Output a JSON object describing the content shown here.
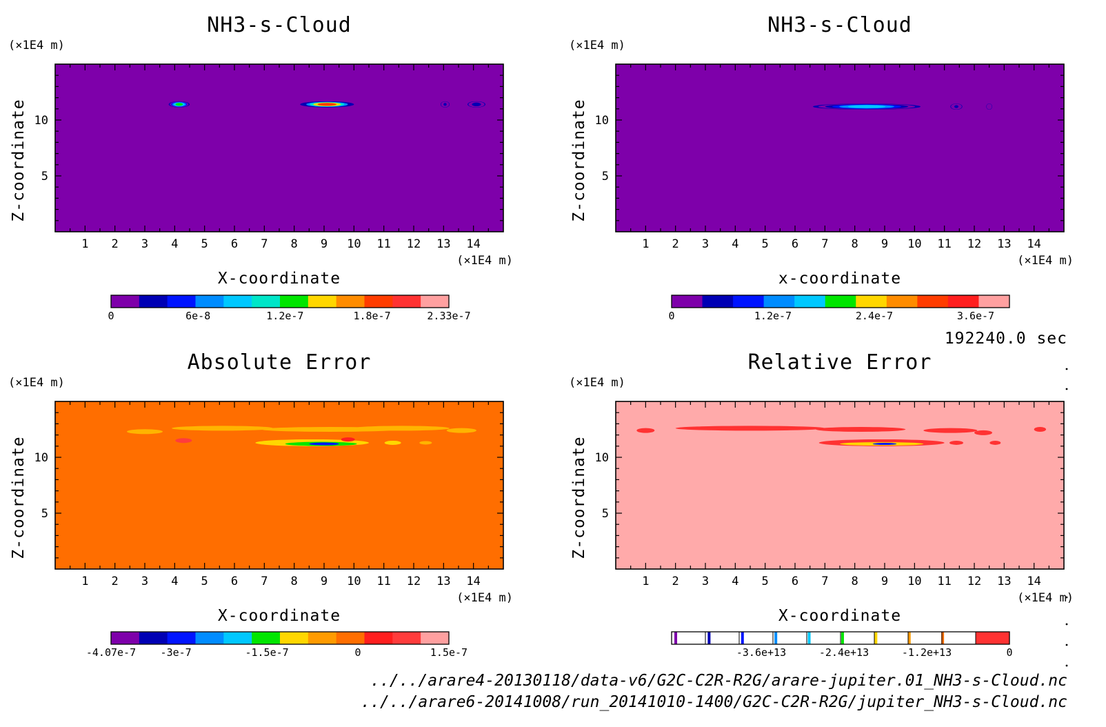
{
  "chart_data": [
    {
      "type": "heatmap",
      "title": "NH3-s-Cloud",
      "xlabel": "X-coordinate",
      "ylabel": "Z-coordinate",
      "x_unit": "(×1E4 m)",
      "y_unit": "(×1E4 m)",
      "xlim": [
        0,
        15
      ],
      "ylim": [
        0,
        15
      ],
      "x_ticks": [
        "1",
        "2",
        "3",
        "4",
        "5",
        "6",
        "7",
        "8",
        "9",
        "10",
        "11",
        "12",
        "13",
        "14"
      ],
      "y_ticks": [
        "5",
        "10"
      ],
      "background": "#7e00aa",
      "colorbar": {
        "range": [
          0,
          2.33e-07
        ],
        "colors": [
          "#7e00aa",
          "#0000b4",
          "#0014ff",
          "#008cff",
          "#00c8ff",
          "#00e6c8",
          "#00e600",
          "#ffd700",
          "#ff8c00",
          "#ff3c00",
          "#ff3232",
          "#ffa0a0"
        ],
        "tick_values": [
          0,
          6e-08,
          1.2e-07,
          1.8e-07,
          2.33e-07
        ],
        "tick_labels": [
          "0",
          "6e-8",
          "1.2e-7",
          "1.8e-7",
          "2.33e-7"
        ]
      },
      "features": [
        {
          "x": [
            3.8,
            4.5
          ],
          "z": 11.4,
          "peak": 1.2e-07
        },
        {
          "x": [
            8.2,
            10.0
          ],
          "z": 11.4,
          "peak": 1.9e-07
        },
        {
          "x": [
            12.9,
            13.2
          ],
          "z": 11.4,
          "peak": 2e-08
        },
        {
          "x": [
            13.8,
            14.4
          ],
          "z": 11.4,
          "peak": 3e-08
        }
      ]
    },
    {
      "type": "heatmap",
      "title": "NH3-s-Cloud",
      "xlabel": "x-coordinate",
      "ylabel": "Z-coordinate",
      "x_unit": "(×1E4 m)",
      "y_unit": "(×1E4 m)",
      "xlim": [
        0,
        15
      ],
      "ylim": [
        0,
        15
      ],
      "x_ticks": [
        "1",
        "2",
        "3",
        "4",
        "5",
        "6",
        "7",
        "8",
        "9",
        "10",
        "11",
        "12",
        "13",
        "14"
      ],
      "y_ticks": [
        "5",
        "10"
      ],
      "background": "#7e00aa",
      "colorbar": {
        "range": [
          0,
          4e-07
        ],
        "colors": [
          "#7e00aa",
          "#0000b4",
          "#0014ff",
          "#008cff",
          "#00c8ff",
          "#00e600",
          "#ffd700",
          "#ff8c00",
          "#ff3c00",
          "#ff1e1e",
          "#ffa0a0"
        ],
        "tick_values": [
          0,
          1.2e-07,
          2.4e-07,
          3.6e-07
        ],
        "tick_labels": [
          "0",
          "1.2e-7",
          "2.4e-7",
          "3.6e-7"
        ]
      },
      "features": [
        {
          "x": [
            6.6,
            10.2
          ],
          "z": 11.2,
          "peak": 1.8e-07
        },
        {
          "x": [
            11.2,
            11.6
          ],
          "z": 11.2,
          "peak": 4e-08
        },
        {
          "x": [
            12.4,
            12.6
          ],
          "z": 11.2,
          "peak": 2e-08
        }
      ]
    },
    {
      "type": "heatmap",
      "title": "Absolute Error",
      "xlabel": "X-coordinate",
      "ylabel": "Z-coordinate",
      "x_unit": "(×1E4 m)",
      "y_unit": "(×1E4 m)",
      "xlim": [
        0,
        15
      ],
      "ylim": [
        0,
        15
      ],
      "x_ticks": [
        "1",
        "2",
        "3",
        "4",
        "5",
        "6",
        "7",
        "8",
        "9",
        "10",
        "11",
        "12",
        "13",
        "14"
      ],
      "y_ticks": [
        "5",
        "10"
      ],
      "background": "#ff6e00",
      "colorbar": {
        "range": [
          -4.07e-07,
          1.5e-07
        ],
        "colors": [
          "#7e00aa",
          "#0000b4",
          "#0014ff",
          "#008cff",
          "#00c8ff",
          "#00e600",
          "#ffd700",
          "#ff9b00",
          "#ff6e00",
          "#ff1e1e",
          "#ff3c3c",
          "#ffa0a0"
        ],
        "tick_values": [
          -4.07e-07,
          -3e-07,
          -1.5e-07,
          0,
          1.5e-07
        ],
        "tick_labels": [
          "-4.07e-7",
          "-3e-7",
          "-1.5e-7",
          "0",
          "1.5e-7"
        ]
      }
    },
    {
      "type": "heatmap",
      "title": "Relative Error",
      "xlabel": "X-coordinate",
      "ylabel": "Z-coordinate",
      "x_unit": "(×1E4 m)",
      "y_unit": "(×1E4 m)",
      "xlim": [
        0,
        15
      ],
      "ylim": [
        0,
        15
      ],
      "x_ticks": [
        "1",
        "2",
        "3",
        "4",
        "5",
        "6",
        "7",
        "8",
        "9",
        "10",
        "11",
        "12",
        "13",
        "14"
      ],
      "y_ticks": [
        "5",
        "10"
      ],
      "background": "#ffaaaa",
      "colorbar": {
        "range": [
          -49000000000000.0,
          0
        ],
        "colors": [
          "#7e00aa",
          "#0000b4",
          "#0014ff",
          "#008cff",
          "#00c8ff",
          "#00e600",
          "#ffd700",
          "#ff9b00",
          "#ff6e00",
          "#ff3232"
        ],
        "tick_values": [
          -36000000000000.0,
          -24000000000000.0,
          -12000000000000.0,
          0
        ],
        "tick_labels": [
          "-3.6e+13",
          "-2.4e+13",
          "-1.2e+13",
          "0"
        ]
      }
    }
  ],
  "time_label": "192240.0 sec",
  "file_paths": [
    "../../arare4-20130118/data-v6/G2C-C2R-R2G/arare-jupiter.01_NH3-s-Cloud.nc",
    "../../arare6-20141008/run_20141010-1400/G2C-C2R-R2G/jupiter_NH3-s-Cloud.nc"
  ]
}
